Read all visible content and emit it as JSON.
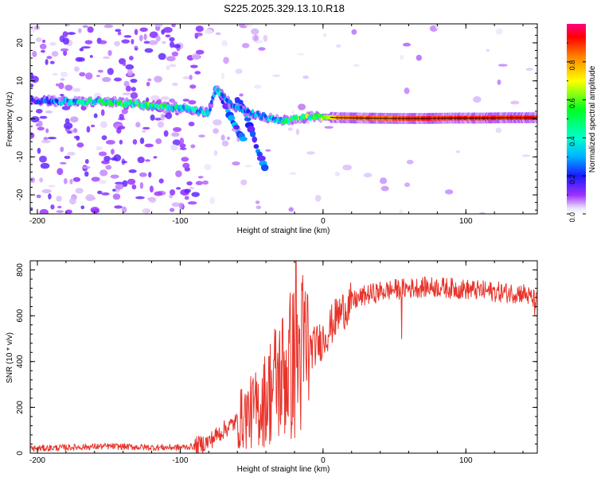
{
  "title": "S225.2025.329.13.10.R18",
  "chart_data": [
    {
      "type": "heatmap",
      "name": "spectrogram",
      "xlabel": "Height of straight line (km)",
      "ylabel": "Frequency (Hz)",
      "xlim": [
        -205,
        150
      ],
      "ylim": [
        -25,
        25
      ],
      "xticks": [
        -200,
        -100,
        0,
        100
      ],
      "xtick_labels": [
        "-200",
        "-100",
        "0",
        "100"
      ],
      "yticks": [
        -20,
        -10,
        0,
        10,
        20
      ],
      "ytick_labels": [
        "-20",
        "-10",
        "0",
        "10",
        "20"
      ],
      "colorbar": {
        "label": "Normalized spectral amplitude",
        "range": [
          0,
          1
        ],
        "ticks": [
          0,
          0.2,
          0.4,
          0.6,
          0.8
        ],
        "tick_labels": [
          "0.0",
          "0.2",
          "0.4",
          "0.6",
          "0.8"
        ]
      },
      "ridge": {
        "x": [
          -205,
          -180,
          -150,
          -120,
          -100,
          -85,
          -80,
          -75,
          -70,
          -65,
          -60,
          -55,
          -50,
          -45,
          -40,
          -35,
          -30,
          -20,
          -10,
          0,
          10,
          30,
          50,
          70,
          90,
          110,
          130,
          150
        ],
        "freq": [
          5,
          4.5,
          4.5,
          3.5,
          3,
          2,
          1.5,
          8,
          6,
          4,
          3,
          2,
          1.5,
          1,
          0.5,
          0,
          -0.5,
          0,
          0.5,
          0.5,
          0.3,
          0.2,
          0.1,
          0.1,
          0.2,
          0.2,
          0.3,
          0.3
        ],
        "amplitude": [
          0.15,
          0.35,
          0.45,
          0.5,
          0.4,
          0.35,
          0.3,
          0.35,
          0.35,
          0.3,
          0.3,
          0.3,
          0.3,
          0.3,
          0.3,
          0.35,
          0.4,
          0.5,
          0.55,
          0.6,
          0.85,
          0.9,
          0.9,
          0.95,
          0.95,
          0.95,
          0.95,
          0.95
        ]
      },
      "branches": [
        {
          "x": [
            -75,
            -70,
            -65,
            -60,
            -55
          ],
          "freq": [
            8,
            5,
            1,
            -3,
            -6
          ]
        },
        {
          "x": [
            -60,
            -55,
            -50,
            -45,
            -40
          ],
          "freq": [
            5,
            2,
            -3,
            -9,
            -14
          ]
        }
      ]
    },
    {
      "type": "line",
      "name": "snr",
      "xlabel": "Height of straight line (km)",
      "ylabel": "SNR (10 * v/v)",
      "xlim": [
        -205,
        150
      ],
      "ylim": [
        0,
        840
      ],
      "xticks": [
        -200,
        -100,
        0,
        100
      ],
      "xtick_labels": [
        "-200",
        "-100",
        "0",
        "100"
      ],
      "yticks": [
        0,
        200,
        400,
        600,
        800
      ],
      "ytick_labels": [
        "0",
        "200",
        "400",
        "600",
        "800"
      ],
      "series": [
        {
          "name": "SNR",
          "color": "#e8332a",
          "x": [
            -205,
            -180,
            -150,
            -120,
            -100,
            -90,
            -80,
            -70,
            -60,
            -50,
            -45,
            -40,
            -35,
            -30,
            -25,
            -20,
            -15,
            -10,
            -5,
            0,
            5,
            10,
            20,
            30,
            40,
            50,
            60,
            70,
            80,
            90,
            100,
            110,
            120,
            130,
            140,
            150
          ],
          "values": [
            20,
            25,
            30,
            25,
            25,
            30,
            50,
            100,
            140,
            180,
            200,
            240,
            300,
            330,
            370,
            400,
            430,
            450,
            470,
            500,
            550,
            600,
            660,
            690,
            705,
            715,
            720,
            725,
            725,
            720,
            715,
            710,
            705,
            700,
            700,
            660
          ]
        }
      ],
      "spikes": [
        {
          "x": -19,
          "value": 840
        },
        {
          "x": 55,
          "value": 500
        },
        {
          "x": 148,
          "value": 600
        }
      ]
    }
  ]
}
